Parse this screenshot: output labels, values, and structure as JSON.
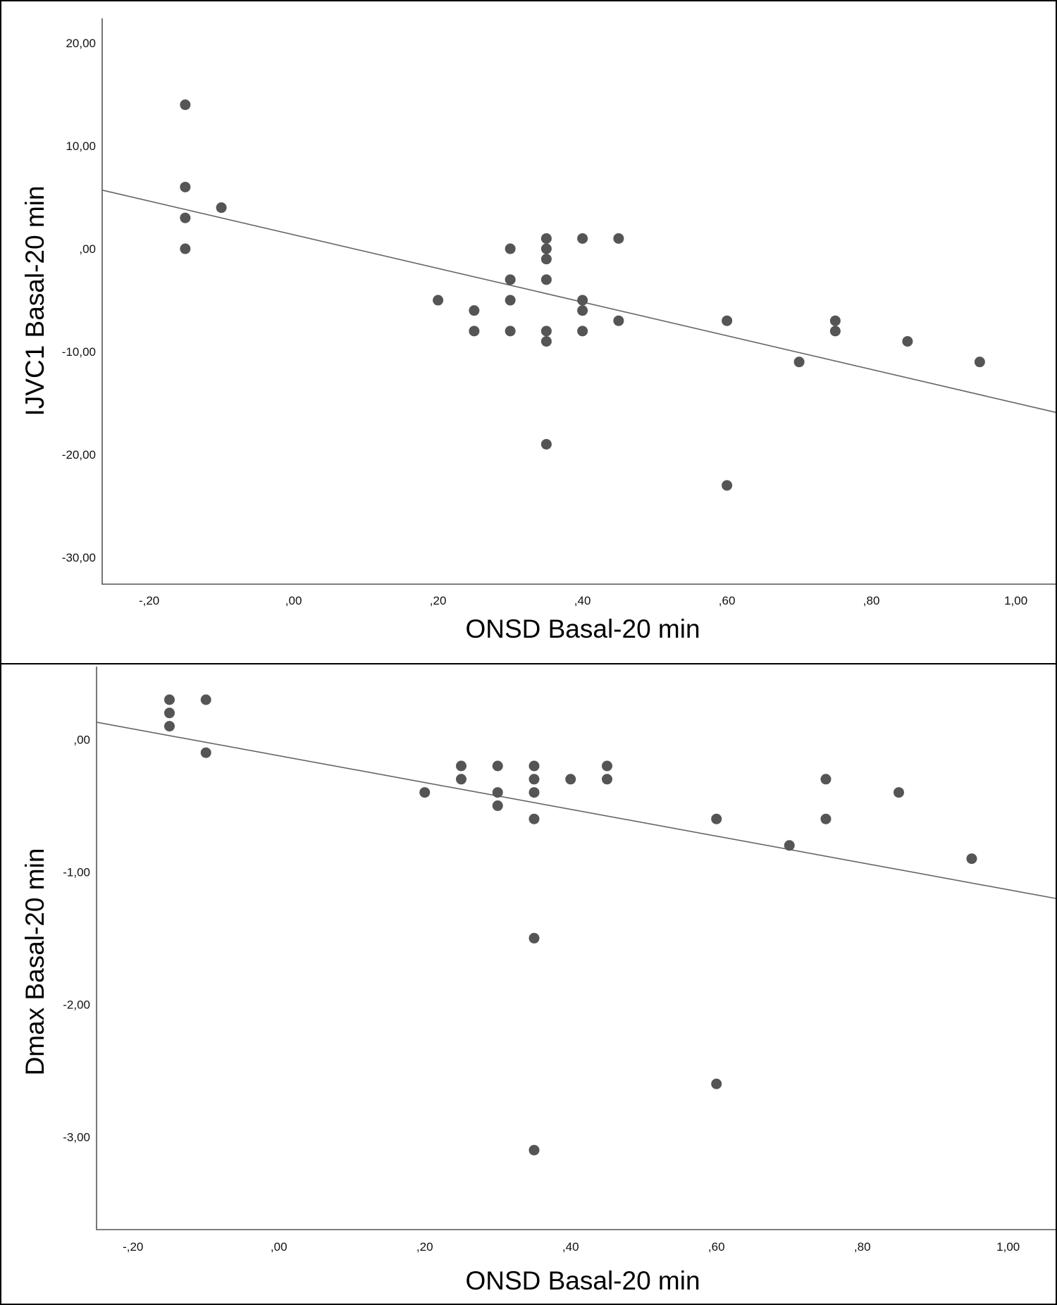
{
  "chart_data": [
    {
      "type": "scatter",
      "xlabel": "ONSD Basal-20 min",
      "ylabel": "IJVC1 Basal-20 min",
      "xlim": [
        -0.265,
        1.055
      ],
      "ylim": [
        -32.6,
        22.4
      ],
      "x_ticks": [
        -0.2,
        0.0,
        0.2,
        0.4,
        0.6,
        0.8,
        1.0
      ],
      "x_tick_labels": [
        "-,20",
        ",00",
        ",20",
        ",40",
        ",60",
        ",80",
        "1,00"
      ],
      "y_ticks": [
        20,
        10,
        0,
        -10,
        -20,
        -30
      ],
      "y_tick_labels": [
        "20,00",
        "10,00",
        ",00",
        "-10,00",
        "-20,00",
        "-30,00"
      ],
      "grid": false,
      "points": [
        {
          "x": -0.15,
          "y": 14
        },
        {
          "x": -0.15,
          "y": 6
        },
        {
          "x": -0.15,
          "y": 3
        },
        {
          "x": -0.15,
          "y": 0
        },
        {
          "x": -0.1,
          "y": 4
        },
        {
          "x": 0.2,
          "y": -5
        },
        {
          "x": 0.25,
          "y": -6
        },
        {
          "x": 0.25,
          "y": -8
        },
        {
          "x": 0.3,
          "y": 0
        },
        {
          "x": 0.3,
          "y": -3
        },
        {
          "x": 0.3,
          "y": -5
        },
        {
          "x": 0.3,
          "y": -8
        },
        {
          "x": 0.35,
          "y": 1
        },
        {
          "x": 0.35,
          "y": 0
        },
        {
          "x": 0.35,
          "y": -1
        },
        {
          "x": 0.35,
          "y": -3
        },
        {
          "x": 0.35,
          "y": -8
        },
        {
          "x": 0.35,
          "y": -9
        },
        {
          "x": 0.35,
          "y": -19
        },
        {
          "x": 0.4,
          "y": 1
        },
        {
          "x": 0.4,
          "y": -5
        },
        {
          "x": 0.4,
          "y": -6
        },
        {
          "x": 0.4,
          "y": -8
        },
        {
          "x": 0.45,
          "y": 1
        },
        {
          "x": 0.45,
          "y": -7
        },
        {
          "x": 0.6,
          "y": -7
        },
        {
          "x": 0.6,
          "y": -23
        },
        {
          "x": 0.7,
          "y": -11
        },
        {
          "x": 0.75,
          "y": -7
        },
        {
          "x": 0.75,
          "y": -8
        },
        {
          "x": 0.85,
          "y": -9
        },
        {
          "x": 0.95,
          "y": -11
        }
      ],
      "fit_line": {
        "x": [
          -0.265,
          1.055
        ],
        "y": [
          5.7,
          -15.9
        ]
      }
    },
    {
      "type": "scatter",
      "xlabel": "ONSD Basal-20 min",
      "ylabel": "Dmax Basal-20 min",
      "xlim": [
        -0.25,
        1.065
      ],
      "ylim": [
        -3.7,
        0.55
      ],
      "x_ticks": [
        -0.2,
        0.0,
        0.2,
        0.4,
        0.6,
        0.8,
        1.0
      ],
      "x_tick_labels": [
        "-,20",
        ",00",
        ",20",
        ",40",
        ",60",
        ",80",
        "1,00"
      ],
      "y_ticks": [
        0,
        -1,
        -2,
        -3
      ],
      "y_tick_labels": [
        ",00",
        "-1,00",
        "-2,00",
        "-3,00"
      ],
      "grid": false,
      "points": [
        {
          "x": -0.15,
          "y": 0.3
        },
        {
          "x": -0.15,
          "y": 0.2
        },
        {
          "x": -0.15,
          "y": 0.1
        },
        {
          "x": -0.1,
          "y": 0.3
        },
        {
          "x": -0.1,
          "y": -0.1
        },
        {
          "x": 0.2,
          "y": -0.4
        },
        {
          "x": 0.25,
          "y": -0.2
        },
        {
          "x": 0.25,
          "y": -0.3
        },
        {
          "x": 0.3,
          "y": -0.2
        },
        {
          "x": 0.3,
          "y": -0.4
        },
        {
          "x": 0.3,
          "y": -0.5
        },
        {
          "x": 0.35,
          "y": -0.2
        },
        {
          "x": 0.35,
          "y": -0.3
        },
        {
          "x": 0.35,
          "y": -0.4
        },
        {
          "x": 0.35,
          "y": -0.6
        },
        {
          "x": 0.35,
          "y": -1.5
        },
        {
          "x": 0.35,
          "y": -3.1
        },
        {
          "x": 0.4,
          "y": -0.3
        },
        {
          "x": 0.45,
          "y": -0.2
        },
        {
          "x": 0.45,
          "y": -0.3
        },
        {
          "x": 0.6,
          "y": -0.6
        },
        {
          "x": 0.6,
          "y": -2.6
        },
        {
          "x": 0.7,
          "y": -0.8
        },
        {
          "x": 0.75,
          "y": -0.3
        },
        {
          "x": 0.75,
          "y": -0.6
        },
        {
          "x": 0.85,
          "y": -0.4
        },
        {
          "x": 0.95,
          "y": -0.9
        }
      ],
      "fit_line": {
        "x": [
          -0.25,
          1.065
        ],
        "y": [
          0.13,
          -1.2
        ]
      }
    }
  ]
}
